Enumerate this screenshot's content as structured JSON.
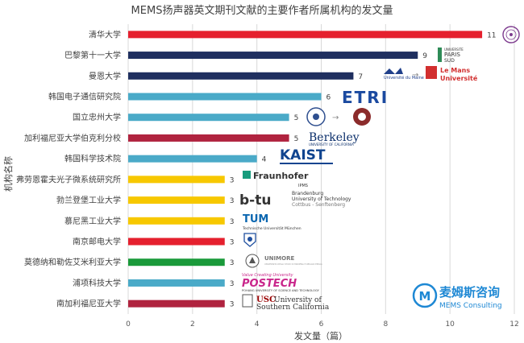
{
  "chart_data": {
    "type": "bar",
    "orientation": "horizontal",
    "title": "MEMS扬声器英文期刊文献的主要作者所属机构的发文量",
    "xlabel": "发文量（篇）",
    "ylabel": "机构名称",
    "xlim": [
      0,
      12
    ],
    "xticks": [
      0,
      2,
      4,
      6,
      8,
      10,
      12
    ],
    "grid": "vertical",
    "categories": [
      "清华大学",
      "巴黎第十一大学",
      "曼恩大学",
      "韩国电子通信研究院",
      "国立忠州大学",
      "加利福尼亚大学伯克利分校",
      "韩国科学技术院",
      "弗劳恩霍夫光子微系统研究所",
      "勃兰登堡工业大学",
      "慕尼黑工业大学",
      "南京邮电大学",
      "莫德纳和勒佐艾米利亚大学",
      "浦项科技大学",
      "南加利福尼亚大学"
    ],
    "values": [
      11,
      9,
      7,
      6,
      5,
      5,
      4,
      3,
      3,
      3,
      3,
      3,
      3,
      3
    ],
    "bar_colors": [
      "#e5202e",
      "#1f2f5f",
      "#1f2f5f",
      "#4aaac8",
      "#4aaac8",
      "#b0233f",
      "#4aaac8",
      "#f7c800",
      "#f7c800",
      "#f7c800",
      "#e5202e",
      "#1a9a3a",
      "#4aaac8",
      "#b0233f"
    ]
  },
  "logos": {
    "paris_sud": [
      "UNIVERSITE",
      "PARIS",
      "SUD"
    ],
    "le_mans_univ_small": "Université du Maine",
    "le_mans": [
      "Le Mans",
      "Université"
    ],
    "etri": "ETRI",
    "berkeley": [
      "Berkeley",
      "UNIVERSITY OF CALIFORNIA"
    ],
    "kaist": "KAIST",
    "fraunhofer": [
      "Fraunhofer",
      "IPMS"
    ],
    "btu": [
      "b-tu",
      "Brandenburg",
      "University of Technology",
      "Cottbus - Senftenberg"
    ],
    "tum": [
      "TUM",
      "Technische Universität München"
    ],
    "unimore": [
      "UNIMORE",
      "UNIVERSITÀ DEGLI STUDI DI MODENA E REGGIO EMILIA"
    ],
    "postech": [
      "Value Creating University",
      "POSTECH",
      "POHANG UNIVERSITY OF SCIENCE AND TECHNOLOGY"
    ],
    "usc": [
      "USC",
      "University of",
      "Southern California"
    ]
  },
  "watermark": {
    "brand": "麦姆斯咨询",
    "brand_en": "MEMS Consulting",
    "accent": "#1e88d4"
  }
}
